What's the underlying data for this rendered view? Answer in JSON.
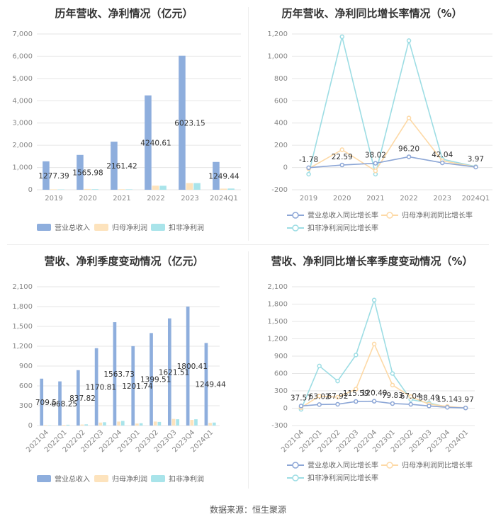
{
  "source": "数据来源：恒生聚源",
  "colors": {
    "revenue": "#8eaedd",
    "net_profit": "#fde3bd",
    "deducted_profit": "#a9e4ea",
    "rev_line": "#8ca6d6",
    "np_line": "#fdd9a6",
    "dp_line": "#9ddde4",
    "grid": "#e6e6e6",
    "axis_text": "#888888",
    "label_text": "#333333"
  },
  "chart_data": [
    {
      "id": "annual-amounts",
      "type": "bar",
      "title": "历年营收、净利情况（亿元）",
      "categories": [
        "2019",
        "2020",
        "2021",
        "2022",
        "2023",
        "2024Q1"
      ],
      "ylim": [
        0,
        7000
      ],
      "yticks": [
        "0",
        "1,000",
        "2,000",
        "3,000",
        "4,000",
        "5,000",
        "6,000",
        "7,000"
      ],
      "grid": true,
      "legend_position": "bottom",
      "series": [
        {
          "name": "营业总收入",
          "values": [
            1277.39,
            1565.98,
            2161.42,
            4240.61,
            6023.15,
            1249.44
          ],
          "labels": [
            "1277.39",
            "1565.98",
            "2161.42",
            "4240.61",
            "6023.15",
            "1249.44"
          ]
        },
        {
          "name": "归母净利润",
          "values": [
            20,
            35,
            25,
            185,
            300,
            50
          ]
        },
        {
          "name": "扣非净利润",
          "values": [
            15,
            25,
            20,
            180,
            300,
            55
          ]
        }
      ]
    },
    {
      "id": "annual-growth",
      "type": "line",
      "title": "历年营收、净利同比增长率情况（%）",
      "categories": [
        "2019",
        "2020",
        "2021",
        "2022",
        "2023",
        "2024Q1"
      ],
      "ylim": [
        -200,
        1200
      ],
      "yticks": [
        "-200",
        "0",
        "200",
        "400",
        "600",
        "800",
        "1,000",
        "1,200"
      ],
      "grid": true,
      "legend_position": "bottom",
      "series": [
        {
          "name": "营业总收入同比增长率",
          "values": [
            -1.78,
            22.59,
            38.02,
            96.2,
            42.04,
            3.97
          ],
          "labels": [
            "-1.78",
            "22.59",
            "38.02",
            "96.20",
            "42.04",
            "3.97"
          ]
        },
        {
          "name": "归母净利润同比增长率",
          "values": [
            -10,
            160,
            -30,
            445,
            60,
            5
          ]
        },
        {
          "name": "扣非净利润同比增长率",
          "values": [
            -60,
            1175,
            -60,
            1140,
            75,
            8
          ]
        }
      ]
    },
    {
      "id": "quarterly-amounts",
      "type": "bar",
      "title": "营收、净利季度变动情况（亿元）",
      "categories": [
        "2021Q4",
        "2022Q1",
        "2022Q2",
        "2022Q3",
        "2022Q4",
        "2023Q1",
        "2023Q2",
        "2023Q3",
        "2023Q4",
        "2024Q1"
      ],
      "ylim": [
        0,
        2100
      ],
      "yticks": [
        "0",
        "300",
        "600",
        "900",
        "1,200",
        "1,500",
        "1,800",
        "2,100"
      ],
      "grid": true,
      "legend_position": "bottom",
      "series": [
        {
          "name": "营业总收入",
          "values": [
            709.5,
            668.25,
            837.82,
            1170.81,
            1563.73,
            1201.74,
            1399.51,
            1621.51,
            1800.41,
            1249.44
          ],
          "labels": [
            "709.5",
            "668.25",
            "837.82",
            "1170.81",
            "1563.73",
            "1201.74",
            "1399.51",
            "1621.51",
            "1800.41",
            "1249.44"
          ]
        },
        {
          "name": "归母净利润",
          "values": [
            8,
            10,
            15,
            45,
            60,
            30,
            60,
            100,
            85,
            40
          ]
        },
        {
          "name": "扣非净利润",
          "values": [
            5,
            12,
            18,
            50,
            70,
            35,
            55,
            95,
            95,
            45
          ]
        }
      ]
    },
    {
      "id": "quarterly-growth",
      "type": "line",
      "title": "营收、净利同比增长率季度变动情况（%）",
      "categories": [
        "2021Q4",
        "2022Q1",
        "2022Q2",
        "2022Q3",
        "2022Q4",
        "2023Q1",
        "2023Q2",
        "2023Q3",
        "2023Q4",
        "2024Q1"
      ],
      "ylim": [
        -300,
        2100
      ],
      "yticks": [
        "-300",
        "0",
        "300",
        "600",
        "900",
        "1,200",
        "1,500",
        "1,800",
        "2,100"
      ],
      "grid": true,
      "legend_position": "bottom",
      "series": [
        {
          "name": "营业总收入同比增长率",
          "values": [
            37.57,
            63.02,
            67.92,
            115.59,
            120.4,
            79.83,
            67.04,
            38.49,
            15.14,
            3.97
          ],
          "labels": [
            "37.57",
            "63.02",
            "67.92",
            "115.59",
            "120.40",
            "79.83",
            "67.04",
            "38.49",
            "15.14",
            "3.97"
          ]
        },
        {
          "name": "归母净利润同比增长率",
          "values": [
            10,
            210,
            190,
            330,
            1110,
            400,
            200,
            70,
            30,
            5
          ]
        },
        {
          "name": "扣非净利润同比增长率",
          "values": [
            -20,
            730,
            470,
            920,
            1870,
            600,
            150,
            90,
            20,
            5
          ]
        }
      ]
    }
  ]
}
